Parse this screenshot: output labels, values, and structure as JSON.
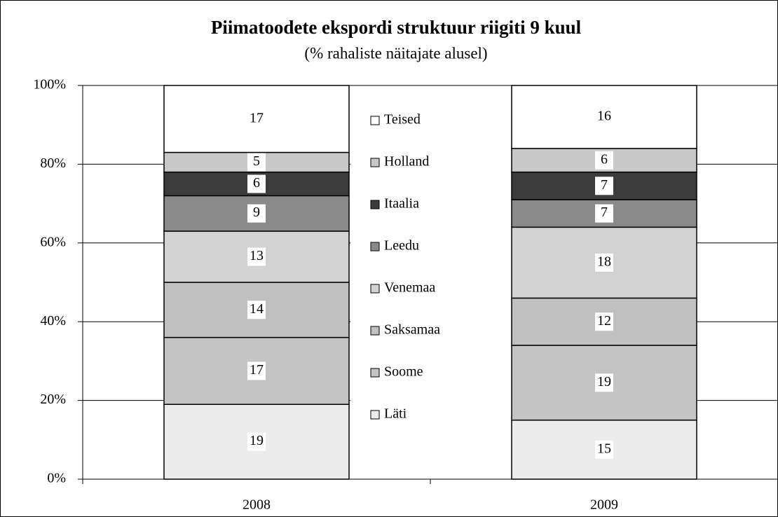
{
  "chart_data": {
    "type": "bar",
    "stacked": true,
    "title": "Piimatoodete ekspordi struktuur riigiti 9 kuul",
    "subtitle": "(% rahaliste näitajate alusel)",
    "categories": [
      "2008",
      "2009"
    ],
    "series": [
      {
        "name": "Läti",
        "color": "#ececec",
        "values": [
          19,
          15
        ]
      },
      {
        "name": "Soome",
        "color": "#c4c4c4",
        "values": [
          17,
          19
        ]
      },
      {
        "name": "Saksamaa",
        "color": "#c0c0c0",
        "values": [
          14,
          12
        ]
      },
      {
        "name": "Venemaa",
        "color": "#d2d2d2",
        "values": [
          13,
          18
        ]
      },
      {
        "name": "Leedu",
        "color": "#8a8a8a",
        "values": [
          9,
          7
        ]
      },
      {
        "name": "Itaalia",
        "color": "#3c3c3c",
        "values": [
          6,
          7
        ]
      },
      {
        "name": "Holland",
        "color": "#c8c8c8",
        "values": [
          5,
          6
        ]
      },
      {
        "name": "Teised",
        "color": "#ffffff",
        "values": [
          17,
          16
        ]
      }
    ],
    "ylim": [
      0,
      100
    ],
    "yticks": [
      {
        "value": 0,
        "label": "0%"
      },
      {
        "value": 20,
        "label": "20%"
      },
      {
        "value": 40,
        "label": "40%"
      },
      {
        "value": 60,
        "label": "60%"
      },
      {
        "value": 80,
        "label": "80%"
      },
      {
        "value": 100,
        "label": "100%"
      }
    ],
    "grid": true,
    "legend": "center"
  }
}
